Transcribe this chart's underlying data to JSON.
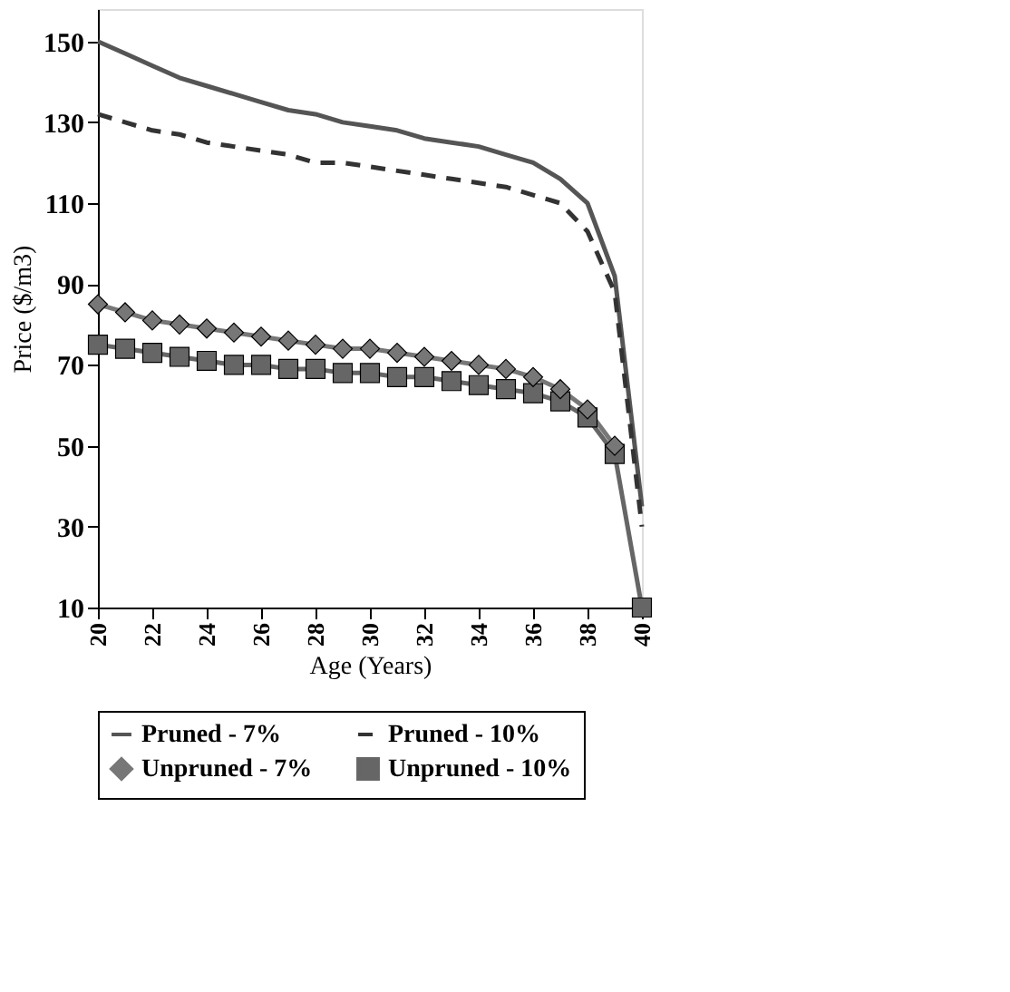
{
  "chart_data": {
    "type": "line",
    "xlabel": "Age (Years)",
    "ylabel": "Price ($/m3)",
    "x": [
      20,
      21,
      22,
      23,
      24,
      25,
      26,
      27,
      28,
      29,
      30,
      31,
      32,
      33,
      34,
      35,
      36,
      37,
      38,
      39,
      40
    ],
    "series": [
      {
        "name": "Pruned - 7%",
        "color": "#555555",
        "line_style": "solid",
        "marker": "none",
        "values": [
          150,
          147,
          144,
          141,
          139,
          137,
          135,
          133,
          132,
          130,
          129,
          128,
          126,
          125,
          124,
          122,
          120,
          116,
          110,
          92,
          35
        ]
      },
      {
        "name": "Pruned - 10%",
        "color": "#333333",
        "line_style": "dashed",
        "marker": "none",
        "values": [
          132,
          130,
          128,
          127,
          125,
          124,
          123,
          122,
          120,
          120,
          119,
          118,
          117,
          116,
          115,
          114,
          112,
          110,
          103,
          88,
          30
        ]
      },
      {
        "name": "Unpruned - 7%",
        "color": "#777777",
        "line_style": "solid",
        "marker": "diamond",
        "values": [
          85,
          83,
          81,
          80,
          79,
          78,
          77,
          76,
          75,
          74,
          74,
          73,
          72,
          71,
          70,
          69,
          67,
          64,
          59,
          50,
          null
        ]
      },
      {
        "name": "Unpruned - 10%",
        "color": "#666666",
        "line_style": "solid",
        "marker": "square",
        "values": [
          75,
          74,
          73,
          72,
          71,
          70,
          70,
          69,
          69,
          68,
          68,
          67,
          67,
          66,
          65,
          64,
          63,
          61,
          57,
          48,
          10
        ]
      }
    ],
    "xlim": [
      20,
      40
    ],
    "xticks": [
      20,
      22,
      24,
      26,
      28,
      30,
      32,
      34,
      36,
      38,
      40
    ],
    "ylim": [
      10,
      158
    ],
    "yticks": [
      10,
      30,
      50,
      70,
      90,
      110,
      130,
      150
    ],
    "grid": false,
    "legend": "bottom"
  }
}
